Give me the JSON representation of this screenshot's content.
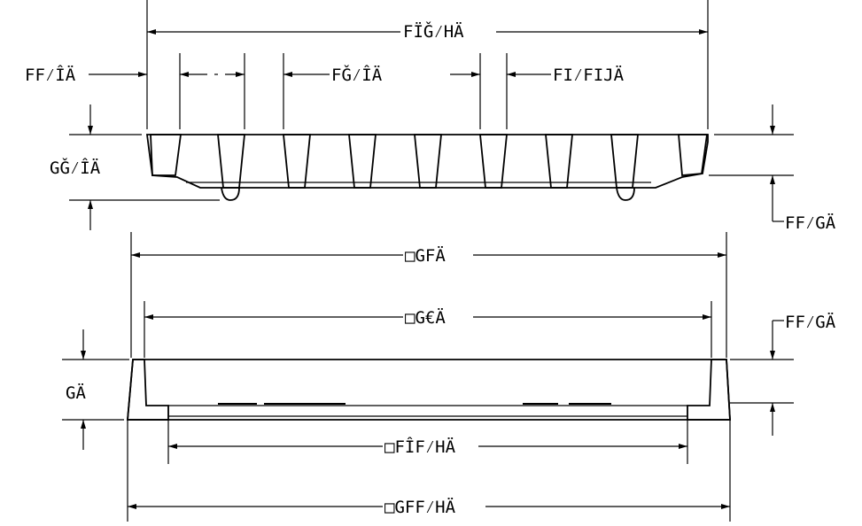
{
  "diagram": {
    "top_view": {
      "dim_overall_width": "FÏǦ⁄HÄ",
      "dim_left_margin": "FF⁄ÎÄ",
      "dim_rib_pitch": "FǦ⁄ÎÄ",
      "dim_slot": "FI⁄FIJÄ",
      "dim_height": "GǦ⁄ÎÄ",
      "dim_lip": "FF⁄GÄ"
    },
    "bottom_view": {
      "dim_outer_top": "GFÄ",
      "dim_inner_top": "G€Ä",
      "dim_lip": "FF⁄GÄ",
      "dim_height": "GÄ",
      "dim_inner_bottom": "FÎF⁄HÄ",
      "dim_outer_bottom": "GFF⁄HÄ"
    },
    "square_symbol": "□"
  }
}
